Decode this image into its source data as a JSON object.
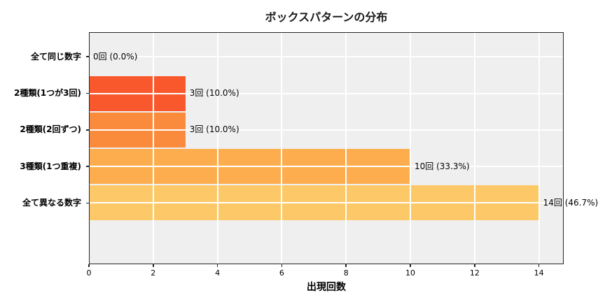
{
  "chart_data": {
    "type": "bar",
    "orientation": "horizontal",
    "title": "ボックスパターンの分布",
    "xlabel": "出現回数",
    "ylabel": "",
    "categories": [
      "全て同じ数字",
      "2種類(1つが3回)",
      "2種類(2回ずつ)",
      "3種類(1つ重複)",
      "全て異なる数字"
    ],
    "values": [
      0,
      3,
      3,
      10,
      14
    ],
    "value_labels": [
      "0回 (0.0%)",
      "3回 (10.0%)",
      "3回 (10.0%)",
      "10回 (33.3%)",
      "14回 (46.7%)"
    ],
    "bar_colors": [
      null,
      "#f9582d",
      "#fa8a3c",
      "#fdad4d",
      "#fdc968"
    ],
    "x_ticks": [
      0,
      2,
      4,
      6,
      8,
      10,
      12,
      14
    ],
    "xlim": [
      0,
      14.77
    ],
    "grid": true,
    "legend": "none",
    "plot_background": "#efefef",
    "grid_color": "#ffffff",
    "spine_color": "#262626"
  }
}
